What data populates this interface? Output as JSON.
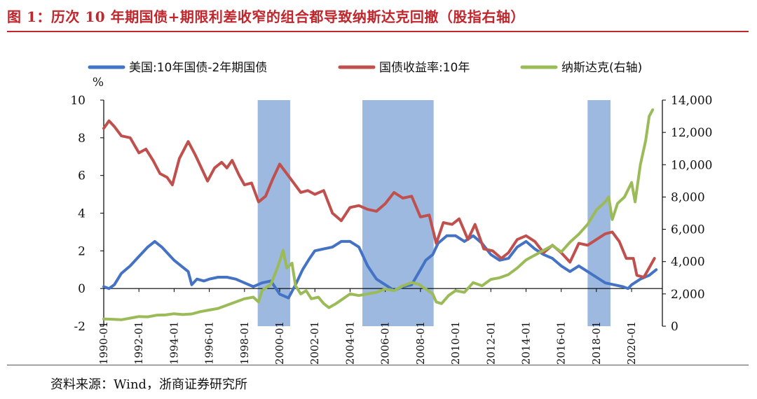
{
  "figure": {
    "title": "图 1：历次 10 年期国债+期限利差收窄的组合都导致纳斯达克回撤（股指右轴）",
    "source": "资料来源：Wind，浙商证券研究所"
  },
  "chart_data": {
    "type": "line",
    "left_axis": {
      "unit": "%",
      "ylim": [
        -2,
        10
      ],
      "ticks": [
        "10",
        "8",
        "6",
        "4",
        "2",
        "0",
        "-2"
      ]
    },
    "right_axis": {
      "ylim": [
        0,
        14000
      ],
      "ticks": [
        "14,000",
        "12,000",
        "10,000",
        "8,000",
        "6,000",
        "4,000",
        "2,000",
        "0"
      ]
    },
    "x_range": [
      1990.0,
      2021.75
    ],
    "x_ticks": [
      "1990-01",
      "1992-01",
      "1994-01",
      "1996-01",
      "1998-01",
      "2000-01",
      "2002-01",
      "2004-01",
      "2006-01",
      "2008-01",
      "2010-01",
      "2012-01",
      "2014-01",
      "2016-01",
      "2018-01",
      "2020-01"
    ],
    "shaded_periods": [
      {
        "start": 1998.75,
        "end": 2000.6,
        "label": ""
      },
      {
        "start": 2004.7,
        "end": 2008.75,
        "label": ""
      },
      {
        "start": 2017.5,
        "end": 2018.8,
        "label": ""
      }
    ],
    "series": [
      {
        "name": "美国:10年国债-2年期国债",
        "axis": "left",
        "color": "#4472c4",
        "points": [
          [
            1990.0,
            0.1
          ],
          [
            1990.3,
            0.0
          ],
          [
            1990.6,
            0.2
          ],
          [
            1991.0,
            0.8
          ],
          [
            1991.5,
            1.2
          ],
          [
            1992.0,
            1.7
          ],
          [
            1992.5,
            2.2
          ],
          [
            1992.9,
            2.5
          ],
          [
            1993.3,
            2.2
          ],
          [
            1993.7,
            1.8
          ],
          [
            1994.0,
            1.5
          ],
          [
            1994.4,
            1.2
          ],
          [
            1994.8,
            0.9
          ],
          [
            1995.0,
            0.2
          ],
          [
            1995.3,
            0.5
          ],
          [
            1995.7,
            0.4
          ],
          [
            1996.0,
            0.5
          ],
          [
            1996.5,
            0.6
          ],
          [
            1997.0,
            0.6
          ],
          [
            1997.5,
            0.5
          ],
          [
            1998.0,
            0.3
          ],
          [
            1998.5,
            0.1
          ],
          [
            1999.0,
            0.3
          ],
          [
            1999.5,
            0.4
          ],
          [
            2000.0,
            -0.3
          ],
          [
            2000.5,
            -0.5
          ],
          [
            2000.9,
            0.2
          ],
          [
            2001.3,
            1.0
          ],
          [
            2001.7,
            1.6
          ],
          [
            2002.0,
            2.0
          ],
          [
            2002.5,
            2.1
          ],
          [
            2003.0,
            2.2
          ],
          [
            2003.5,
            2.5
          ],
          [
            2004.0,
            2.5
          ],
          [
            2004.5,
            2.2
          ],
          [
            2005.0,
            1.2
          ],
          [
            2005.5,
            0.5
          ],
          [
            2006.0,
            0.2
          ],
          [
            2006.5,
            -0.1
          ],
          [
            2007.0,
            0.1
          ],
          [
            2007.5,
            0.2
          ],
          [
            2008.0,
            1.0
          ],
          [
            2008.3,
            1.5
          ],
          [
            2008.7,
            1.8
          ],
          [
            2009.0,
            2.4
          ],
          [
            2009.5,
            2.8
          ],
          [
            2010.0,
            2.8
          ],
          [
            2010.5,
            2.5
          ],
          [
            2011.0,
            2.8
          ],
          [
            2011.5,
            2.4
          ],
          [
            2012.0,
            1.8
          ],
          [
            2012.5,
            1.5
          ],
          [
            2013.0,
            1.6
          ],
          [
            2013.5,
            2.2
          ],
          [
            2014.0,
            2.5
          ],
          [
            2014.5,
            2.1
          ],
          [
            2015.0,
            1.8
          ],
          [
            2015.5,
            1.6
          ],
          [
            2016.0,
            1.2
          ],
          [
            2016.5,
            0.9
          ],
          [
            2017.0,
            1.2
          ],
          [
            2017.5,
            0.9
          ],
          [
            2018.0,
            0.6
          ],
          [
            2018.5,
            0.3
          ],
          [
            2019.0,
            0.2
          ],
          [
            2019.5,
            0.1
          ],
          [
            2019.8,
            0.0
          ],
          [
            2020.0,
            0.2
          ],
          [
            2020.5,
            0.5
          ],
          [
            2021.0,
            0.7
          ],
          [
            2021.4,
            1.0
          ]
        ]
      },
      {
        "name": "国债收益率:10年",
        "axis": "left",
        "color": "#c0504d",
        "points": [
          [
            1990.0,
            8.5
          ],
          [
            1990.3,
            8.9
          ],
          [
            1990.6,
            8.6
          ],
          [
            1991.0,
            8.1
          ],
          [
            1991.5,
            8.0
          ],
          [
            1992.0,
            7.2
          ],
          [
            1992.4,
            7.4
          ],
          [
            1992.8,
            6.8
          ],
          [
            1993.2,
            6.1
          ],
          [
            1993.6,
            5.9
          ],
          [
            1993.9,
            5.5
          ],
          [
            1994.3,
            6.9
          ],
          [
            1994.8,
            7.8
          ],
          [
            1995.2,
            7.1
          ],
          [
            1995.6,
            6.3
          ],
          [
            1995.9,
            5.7
          ],
          [
            1996.3,
            6.4
          ],
          [
            1996.7,
            6.7
          ],
          [
            1997.0,
            6.4
          ],
          [
            1997.3,
            6.8
          ],
          [
            1997.7,
            6.0
          ],
          [
            1998.0,
            5.5
          ],
          [
            1998.4,
            5.6
          ],
          [
            1998.8,
            4.6
          ],
          [
            1999.2,
            4.9
          ],
          [
            1999.6,
            5.8
          ],
          [
            2000.0,
            6.6
          ],
          [
            2000.4,
            6.1
          ],
          [
            2000.8,
            5.6
          ],
          [
            2001.2,
            5.1
          ],
          [
            2001.6,
            5.2
          ],
          [
            2002.0,
            5.0
          ],
          [
            2002.5,
            5.2
          ],
          [
            2003.0,
            4.0
          ],
          [
            2003.5,
            3.6
          ],
          [
            2004.0,
            4.3
          ],
          [
            2004.5,
            4.4
          ],
          [
            2005.0,
            4.2
          ],
          [
            2005.5,
            4.1
          ],
          [
            2006.0,
            4.5
          ],
          [
            2006.5,
            5.1
          ],
          [
            2007.0,
            4.8
          ],
          [
            2007.5,
            4.9
          ],
          [
            2008.0,
            3.8
          ],
          [
            2008.5,
            3.9
          ],
          [
            2008.9,
            2.4
          ],
          [
            2009.3,
            3.5
          ],
          [
            2009.8,
            3.4
          ],
          [
            2010.2,
            3.7
          ],
          [
            2010.7,
            2.6
          ],
          [
            2011.1,
            3.4
          ],
          [
            2011.6,
            2.1
          ],
          [
            2012.1,
            2.0
          ],
          [
            2012.6,
            1.6
          ],
          [
            2013.0,
            1.9
          ],
          [
            2013.5,
            2.6
          ],
          [
            2014.0,
            2.8
          ],
          [
            2014.5,
            2.5
          ],
          [
            2015.0,
            1.9
          ],
          [
            2015.5,
            2.3
          ],
          [
            2016.0,
            1.9
          ],
          [
            2016.5,
            1.4
          ],
          [
            2017.0,
            2.4
          ],
          [
            2017.5,
            2.3
          ],
          [
            2018.0,
            2.6
          ],
          [
            2018.5,
            2.9
          ],
          [
            2018.9,
            3.0
          ],
          [
            2019.3,
            2.5
          ],
          [
            2019.7,
            1.6
          ],
          [
            2020.1,
            1.6
          ],
          [
            2020.3,
            0.7
          ],
          [
            2020.7,
            0.6
          ],
          [
            2021.0,
            1.1
          ],
          [
            2021.3,
            1.6
          ]
        ]
      },
      {
        "name": "纳斯达克(右轴)",
        "axis": "right",
        "color": "#9bbb59",
        "points": [
          [
            1990.0,
            450
          ],
          [
            1990.5,
            430
          ],
          [
            1991.0,
            400
          ],
          [
            1991.5,
            500
          ],
          [
            1992.0,
            600
          ],
          [
            1992.5,
            580
          ],
          [
            1993.0,
            680
          ],
          [
            1993.5,
            700
          ],
          [
            1994.0,
            770
          ],
          [
            1994.5,
            720
          ],
          [
            1995.0,
            760
          ],
          [
            1995.5,
            900
          ],
          [
            1996.0,
            1000
          ],
          [
            1996.5,
            1100
          ],
          [
            1997.0,
            1300
          ],
          [
            1997.5,
            1500
          ],
          [
            1998.0,
            1700
          ],
          [
            1998.5,
            1800
          ],
          [
            1998.8,
            1500
          ],
          [
            1999.0,
            2200
          ],
          [
            1999.5,
            2600
          ],
          [
            1999.9,
            3700
          ],
          [
            2000.2,
            4700
          ],
          [
            2000.4,
            3600
          ],
          [
            2000.7,
            3900
          ],
          [
            2000.9,
            2500
          ],
          [
            2001.2,
            2000
          ],
          [
            2001.5,
            2200
          ],
          [
            2001.8,
            1700
          ],
          [
            2002.2,
            1800
          ],
          [
            2002.5,
            1400
          ],
          [
            2002.8,
            1150
          ],
          [
            2003.2,
            1400
          ],
          [
            2003.6,
            1700
          ],
          [
            2004.0,
            2000
          ],
          [
            2004.5,
            1900
          ],
          [
            2005.0,
            2000
          ],
          [
            2005.5,
            2100
          ],
          [
            2006.0,
            2300
          ],
          [
            2006.5,
            2200
          ],
          [
            2007.0,
            2500
          ],
          [
            2007.5,
            2700
          ],
          [
            2007.9,
            2600
          ],
          [
            2008.3,
            2300
          ],
          [
            2008.7,
            2000
          ],
          [
            2008.9,
            1500
          ],
          [
            2009.2,
            1400
          ],
          [
            2009.6,
            1900
          ],
          [
            2010.0,
            2200
          ],
          [
            2010.5,
            2100
          ],
          [
            2011.0,
            2700
          ],
          [
            2011.5,
            2500
          ],
          [
            2012.0,
            2900
          ],
          [
            2012.5,
            3000
          ],
          [
            2013.0,
            3200
          ],
          [
            2013.5,
            3600
          ],
          [
            2014.0,
            4100
          ],
          [
            2014.5,
            4400
          ],
          [
            2015.0,
            4700
          ],
          [
            2015.5,
            5000
          ],
          [
            2016.0,
            4600
          ],
          [
            2016.5,
            5200
          ],
          [
            2017.0,
            5700
          ],
          [
            2017.5,
            6300
          ],
          [
            2018.0,
            7200
          ],
          [
            2018.5,
            7700
          ],
          [
            2018.7,
            8000
          ],
          [
            2018.9,
            6600
          ],
          [
            2019.2,
            7600
          ],
          [
            2019.6,
            8000
          ],
          [
            2020.0,
            8900
          ],
          [
            2020.2,
            7700
          ],
          [
            2020.5,
            10000
          ],
          [
            2020.8,
            11500
          ],
          [
            2021.0,
            13000
          ],
          [
            2021.2,
            13400
          ]
        ]
      }
    ]
  }
}
